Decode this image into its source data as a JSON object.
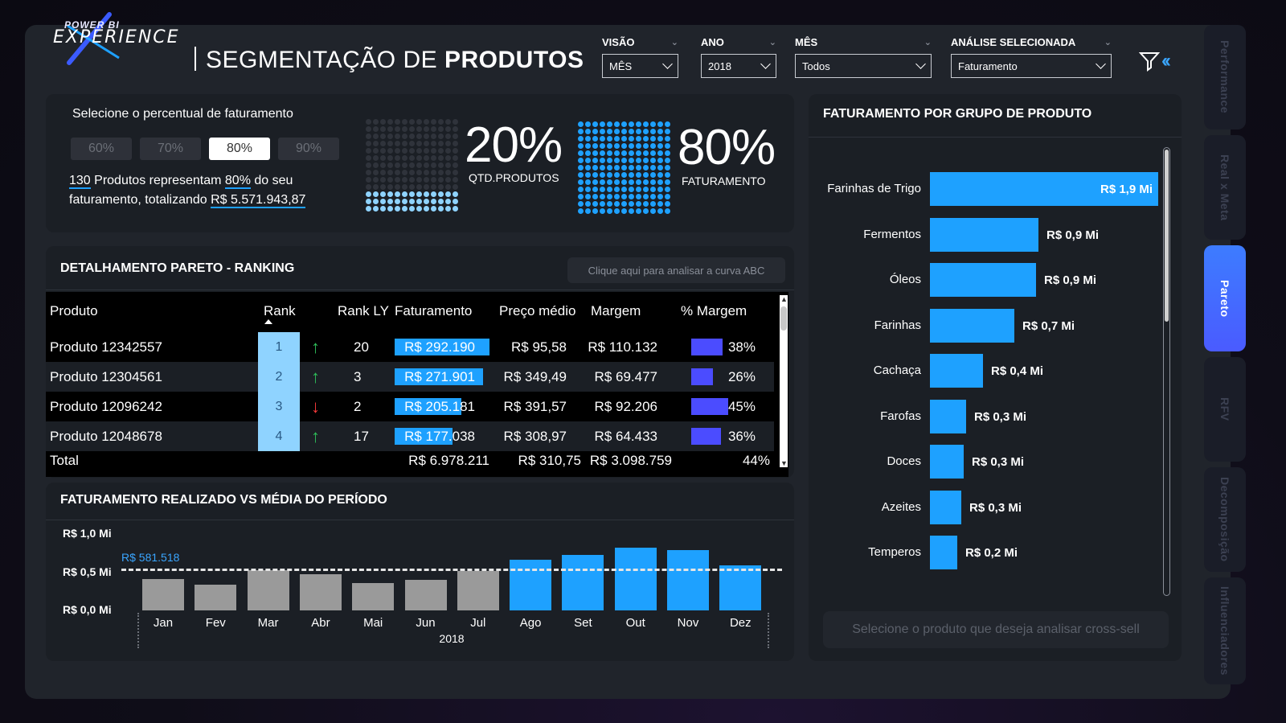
{
  "header": {
    "logo_top": "POWER BI",
    "logo_main": "EXPERIENCE",
    "title_prefix": "SEGMENTAÇÃO DE ",
    "title_bold": "PRODUTOS"
  },
  "filters": [
    {
      "label": "VISÃO",
      "value": "MÊS"
    },
    {
      "label": "ANO",
      "value": "2018"
    },
    {
      "label": "MÊS",
      "value": "Todos"
    },
    {
      "label": "ANÁLISE SELECIONADA",
      "value": "Faturamento"
    }
  ],
  "nav": [
    "Performance",
    "Real x Meta",
    "Pareto",
    "RFV",
    "Decomposição",
    "Influenciadores"
  ],
  "nav_active": "Pareto",
  "percent_selector": {
    "title": "Selecione o percentual de faturamento",
    "options": [
      "60%",
      "70%",
      "80%",
      "90%"
    ],
    "selected": "80%",
    "summary_count": "130",
    "summary_t1": " Produtos representam ",
    "summary_pct": "80%",
    "summary_t2": " do seu faturamento, totalizando ",
    "summary_total": "R$ 5.571.943,87"
  },
  "kpis": {
    "qtd_pct": "20%",
    "qtd_label": "QTD.PRODUTOS",
    "fat_pct": "80%",
    "fat_label": "FATURAMENTO"
  },
  "pareto_table": {
    "title": "DETALHAMENTO PARETO - RANKING",
    "abc_button": "Clique aqui para analisar a curva ABC",
    "columns": [
      "Produto",
      "Rank",
      "Rank LY",
      "Faturamento",
      "Preço médio",
      "Margem",
      "% Margem"
    ],
    "rows": [
      {
        "produto": "Produto 12342557",
        "rank": "1",
        "trend": "up",
        "rank_ly": "20",
        "faturamento": "R$ 292.190",
        "fat_share": 1.0,
        "preco": "R$ 95,58",
        "margem": "R$ 110.132",
        "pct_margem": "38%",
        "pct_val": 38
      },
      {
        "produto": "Produto 12304561",
        "rank": "2",
        "trend": "up",
        "rank_ly": "3",
        "faturamento": "R$ 271.901",
        "fat_share": 0.93,
        "preco": "R$ 349,49",
        "margem": "R$ 69.477",
        "pct_margem": "26%",
        "pct_val": 26
      },
      {
        "produto": "Produto 12096242",
        "rank": "3",
        "trend": "down",
        "rank_ly": "2",
        "faturamento": "R$ 205.181",
        "fat_share": 0.7,
        "preco": "R$ 391,57",
        "margem": "R$ 92.206",
        "pct_margem": "45%",
        "pct_val": 45
      },
      {
        "produto": "Produto 12048678",
        "rank": "4",
        "trend": "up",
        "rank_ly": "17",
        "faturamento": "R$ 177.038",
        "fat_share": 0.61,
        "preco": "R$ 308,97",
        "margem": "R$ 64.433",
        "pct_margem": "36%",
        "pct_val": 36
      }
    ],
    "total": {
      "label": "Total",
      "faturamento": "R$ 6.978.211",
      "preco": "R$ 310,75",
      "margem": "R$ 3.098.759",
      "pct_margem": "44%"
    }
  },
  "group_chart": {
    "title": "FATURAMENTO POR GRUPO DE PRODUTO",
    "cross_sell_placeholder": "Selecione o produto que deseja analisar cross-sell",
    "items": [
      {
        "name": "Farinhas de Trigo",
        "value": 1.9,
        "label": "R$ 1,9 Mi"
      },
      {
        "name": "Fermentos",
        "value": 0.9,
        "label": "R$ 0,9 Mi"
      },
      {
        "name": "Óleos",
        "value": 0.88,
        "label": "R$ 0,9 Mi"
      },
      {
        "name": "Farinhas",
        "value": 0.7,
        "label": "R$ 0,7 Mi"
      },
      {
        "name": "Cachaça",
        "value": 0.44,
        "label": "R$ 0,4 Mi"
      },
      {
        "name": "Farofas",
        "value": 0.3,
        "label": "R$ 0,3 Mi"
      },
      {
        "name": "Doces",
        "value": 0.28,
        "label": "R$ 0,3 Mi"
      },
      {
        "name": "Azeites",
        "value": 0.26,
        "label": "R$ 0,3 Mi"
      },
      {
        "name": "Temperos",
        "value": 0.23,
        "label": "R$ 0,2 Mi"
      }
    ]
  },
  "chart_data": {
    "type": "bar",
    "title": "FATURAMENTO REALIZADO VS MÉDIA DO PERÍODO",
    "xlabel": "2018",
    "categories": [
      "Jan",
      "Fev",
      "Mar",
      "Abr",
      "Mai",
      "Jun",
      "Jul",
      "Ago",
      "Set",
      "Out",
      "Nov",
      "Dez"
    ],
    "values": [
      0.43,
      0.35,
      0.55,
      0.5,
      0.38,
      0.42,
      0.54,
      0.7,
      0.77,
      0.86,
      0.83,
      0.62
    ],
    "average": 0.581518,
    "average_label": "R$ 581.518",
    "yticks": [
      "R$ 1,0 Mi",
      "R$ 0,5 Mi",
      "R$ 0,0 Mi"
    ],
    "ylim": [
      0,
      1.0
    ],
    "colors": {
      "below": "#9a9a9a",
      "above": "#1ea1ff"
    }
  },
  "colors": {
    "accent": "#1ea1ff",
    "margin_bar": "#4b4cff",
    "rank_cell": "#8fd3ff",
    "up": "#2fbf5a",
    "down": "#ff3b3b"
  }
}
